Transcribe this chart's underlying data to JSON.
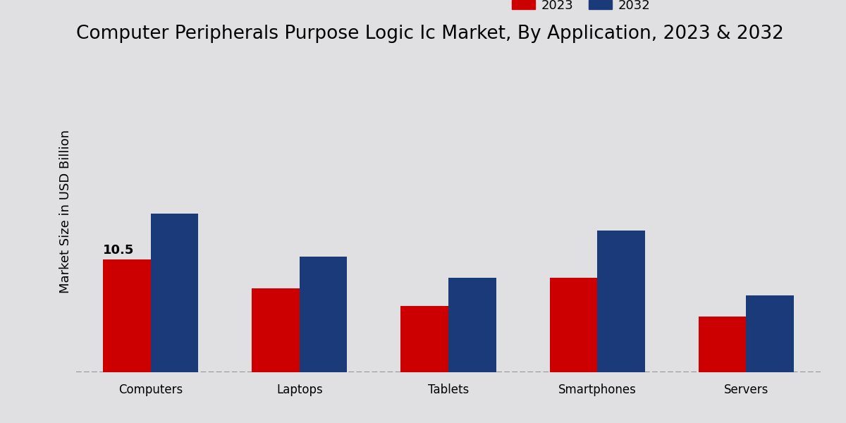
{
  "title": "Computer Peripherals Purpose Logic Ic Market, By Application, 2023 & 2032",
  "ylabel": "Market Size in USD Billion",
  "categories": [
    "Computers",
    "Laptops",
    "Tablets",
    "Smartphones",
    "Servers"
  ],
  "values_2023": [
    10.5,
    7.8,
    6.2,
    8.8,
    5.2
  ],
  "values_2032": [
    14.8,
    10.8,
    8.8,
    13.2,
    7.2
  ],
  "color_2023": "#cc0000",
  "color_2032": "#1a3a7a",
  "annotation_text": "10.5",
  "background_color_light": "#e8e8e8",
  "background_color_dark": "#d0d0d0",
  "legend_labels": [
    "2023",
    "2032"
  ],
  "bar_width": 0.32,
  "ylim": [
    0,
    30
  ],
  "title_fontsize": 19,
  "axis_label_fontsize": 13,
  "tick_fontsize": 12,
  "legend_fontsize": 13
}
